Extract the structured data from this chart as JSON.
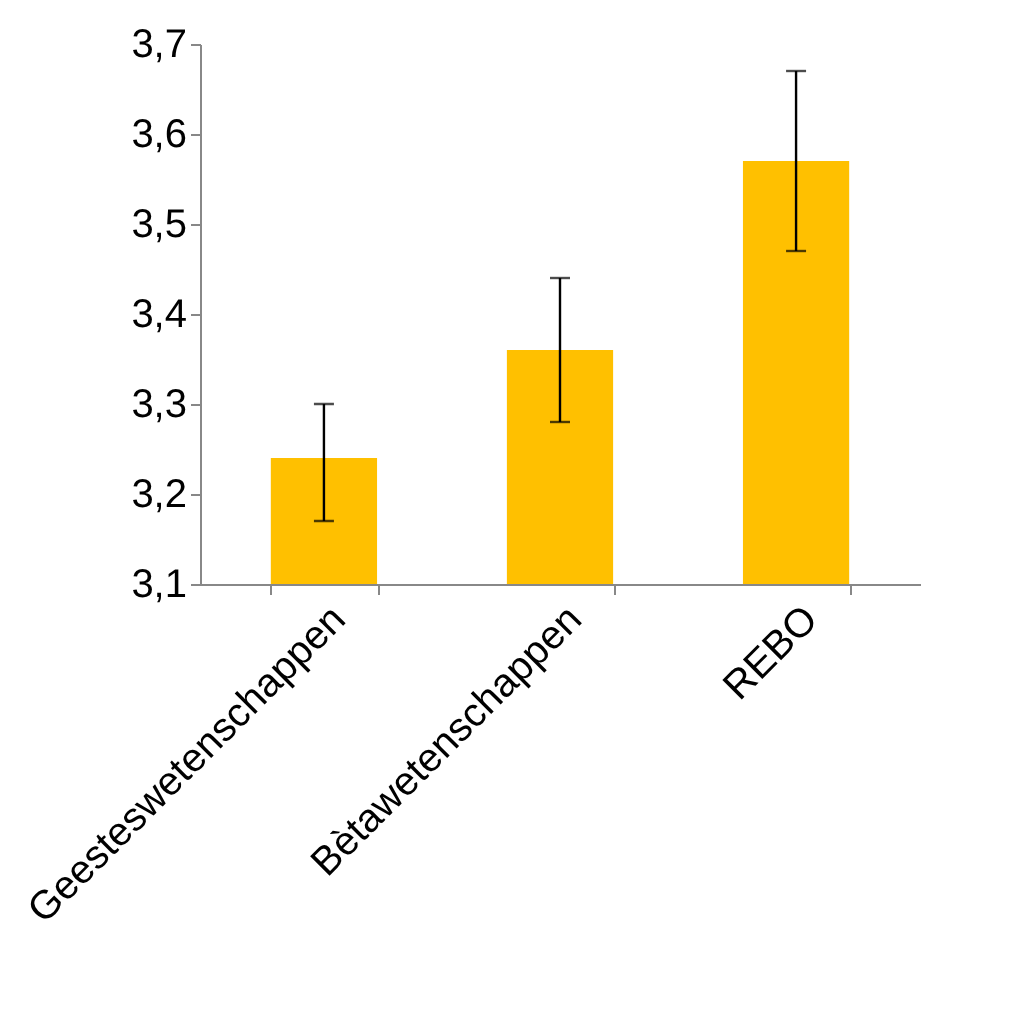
{
  "chart_data": {
    "type": "bar",
    "categories": [
      "Geesteswetenschappen",
      "Bètawetenschappen",
      "REBO"
    ],
    "values": [
      3.24,
      3.36,
      3.57
    ],
    "color": "#ffc000",
    "errors": [
      [
        3.17,
        3.3
      ],
      [
        3.28,
        3.44
      ],
      [
        3.47,
        3.67
      ]
    ],
    "ylim": [
      3.1,
      3.7
    ],
    "yticks": [
      {
        "value": 3.1,
        "label": "3,1"
      },
      {
        "value": 3.2,
        "label": "3,2"
      },
      {
        "value": 3.3,
        "label": "3,3"
      },
      {
        "value": 3.4,
        "label": "3,4"
      },
      {
        "value": 3.5,
        "label": "3,5"
      },
      {
        "value": 3.6,
        "label": "3,6"
      },
      {
        "value": 3.7,
        "label": "3,7"
      }
    ],
    "grid": false
  }
}
